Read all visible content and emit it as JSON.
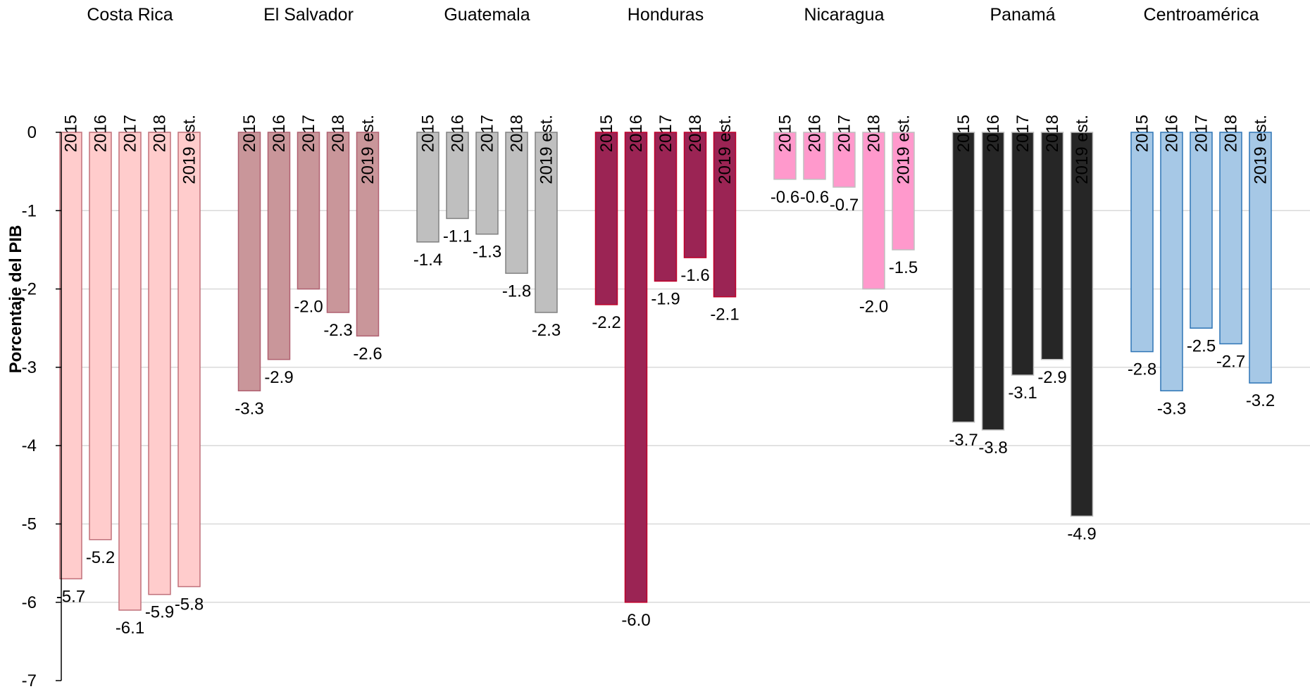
{
  "chart_data": {
    "type": "bar",
    "ylabel": "Porcentaje del PIB",
    "ylim": [
      -7,
      0
    ],
    "yticks": [
      0,
      -1,
      -2,
      -3,
      -4,
      -5,
      -6,
      -7
    ],
    "grid": true,
    "categories": [
      "2015",
      "2016",
      "2017",
      "2018",
      "2019 est."
    ],
    "groups": [
      {
        "name": "Costa Rica",
        "fill": "#ffcccc",
        "stroke": "#c0707a",
        "values": [
          -5.7,
          -5.2,
          -6.1,
          -5.9,
          -5.8
        ],
        "labels": [
          "-5.7",
          "-5.2",
          "-6.1",
          "-5.9",
          "-5.8"
        ]
      },
      {
        "name": "El Salvador",
        "fill": "#c9969a",
        "stroke": "#b06070",
        "values": [
          -3.3,
          -2.9,
          -2.0,
          -2.3,
          -2.6
        ],
        "labels": [
          "-3.3",
          "-2.9",
          "-2.0",
          "-2.3",
          "-2.6"
        ]
      },
      {
        "name": "Guatemala",
        "fill": "#bfbfbf",
        "stroke": "#808080",
        "values": [
          -1.4,
          -1.1,
          -1.3,
          -1.8,
          -2.3
        ],
        "labels": [
          "-1.4",
          "-1.1",
          "-1.3",
          "-1.8",
          "-2.3"
        ]
      },
      {
        "name": "Honduras",
        "fill": "#9b2454",
        "stroke": "#c0002a",
        "values": [
          -2.2,
          -6.0,
          -1.9,
          -1.6,
          -2.1
        ],
        "labels": [
          "-2.2",
          "-6.0",
          "-1.9",
          "-1.6",
          "-2.1"
        ]
      },
      {
        "name": "Nicaragua",
        "fill": "#ff99cc",
        "stroke": "#bfbfbf",
        "values": [
          -0.6,
          -0.6,
          -0.7,
          -2.0,
          -1.5
        ],
        "labels": [
          "-0.6",
          "-0.6",
          "-0.7",
          "-2.0",
          "-1.5"
        ]
      },
      {
        "name": "Panamá",
        "fill": "#262626",
        "stroke": "#bfbfbf",
        "values": [
          -3.7,
          -3.8,
          -3.1,
          -2.9,
          -4.9
        ],
        "labels": [
          "-3.7",
          "-3.8",
          "-3.1",
          "-2.9",
          "-4.9"
        ]
      },
      {
        "name": "Centroamérica",
        "fill": "#a6c8e6",
        "stroke": "#2e75b6",
        "values": [
          -2.8,
          -3.3,
          -2.5,
          -2.7,
          -3.2
        ],
        "labels": [
          "-2.8",
          "-3.3",
          "-2.5",
          "-2.7",
          "-3.2"
        ]
      }
    ]
  }
}
